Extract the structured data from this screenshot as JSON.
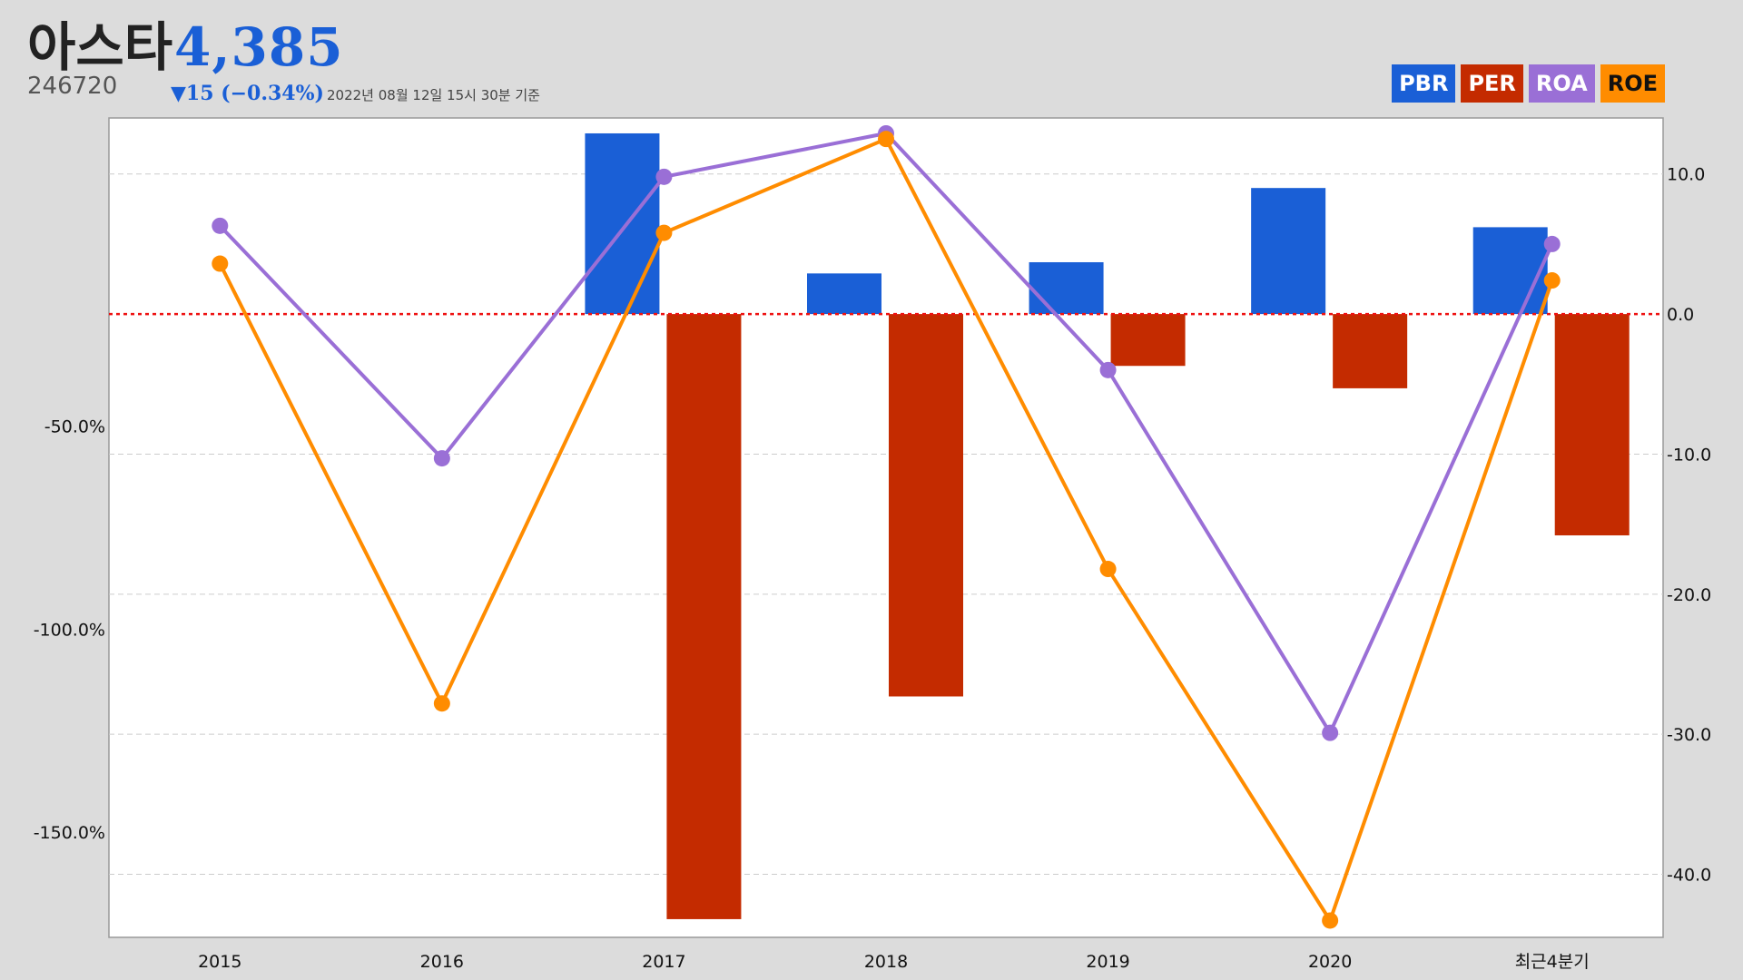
{
  "stock": {
    "name": "아스타",
    "price": "4,385",
    "code": "246720",
    "change": "▼15 (−0.34%)",
    "timestamp": "2022년 08월 12일 15시 30분 기준"
  },
  "legend": [
    {
      "label": "PBR",
      "color": "#1a5fd6",
      "text_color": "#ffffff"
    },
    {
      "label": "PER",
      "color": "#c42b00",
      "text_color": "#ffffff"
    },
    {
      "label": "ROA",
      "color": "#9a6fd6",
      "text_color": "#ffffff"
    },
    {
      "label": "ROE",
      "color": "#ff8c00",
      "text_color": "#111111"
    }
  ],
  "chart_data": {
    "type": "bar+line",
    "categories": [
      "2015",
      "2016",
      "2017",
      "2018",
      "2019",
      "2020",
      "최근4분기"
    ],
    "left_axis": {
      "ticks": [
        "-50.0%",
        "-100.0%",
        "-150.0%"
      ],
      "range": [
        -176,
        26
      ]
    },
    "right_axis": {
      "ticks": [
        "10.0",
        "0.0",
        "-10.0",
        "-20.0",
        "-30.0",
        "-40.0"
      ],
      "range": [
        -44.5,
        14
      ]
    },
    "zero_line": {
      "style": "dotted",
      "color": "#ee1111"
    },
    "grid": true,
    "series": [
      {
        "name": "PBR",
        "type": "bar",
        "color": "#1a5fd6",
        "values": [
          null,
          null,
          12.9,
          2.9,
          3.7,
          9.0,
          6.2
        ]
      },
      {
        "name": "PER",
        "type": "bar",
        "color": "#c42b00",
        "values": [
          null,
          null,
          -43.2,
          -27.3,
          -3.7,
          -5.3,
          -15.8
        ]
      },
      {
        "name": "ROA",
        "type": "line",
        "color": "#9a6fd6",
        "values": [
          6.3,
          -10.3,
          9.8,
          12.9,
          -4.0,
          -29.9,
          5.0
        ]
      },
      {
        "name": "ROE",
        "type": "line",
        "color": "#ff8c00",
        "values": [
          3.6,
          -27.8,
          5.8,
          12.5,
          -18.2,
          -43.3,
          2.4
        ]
      }
    ]
  }
}
